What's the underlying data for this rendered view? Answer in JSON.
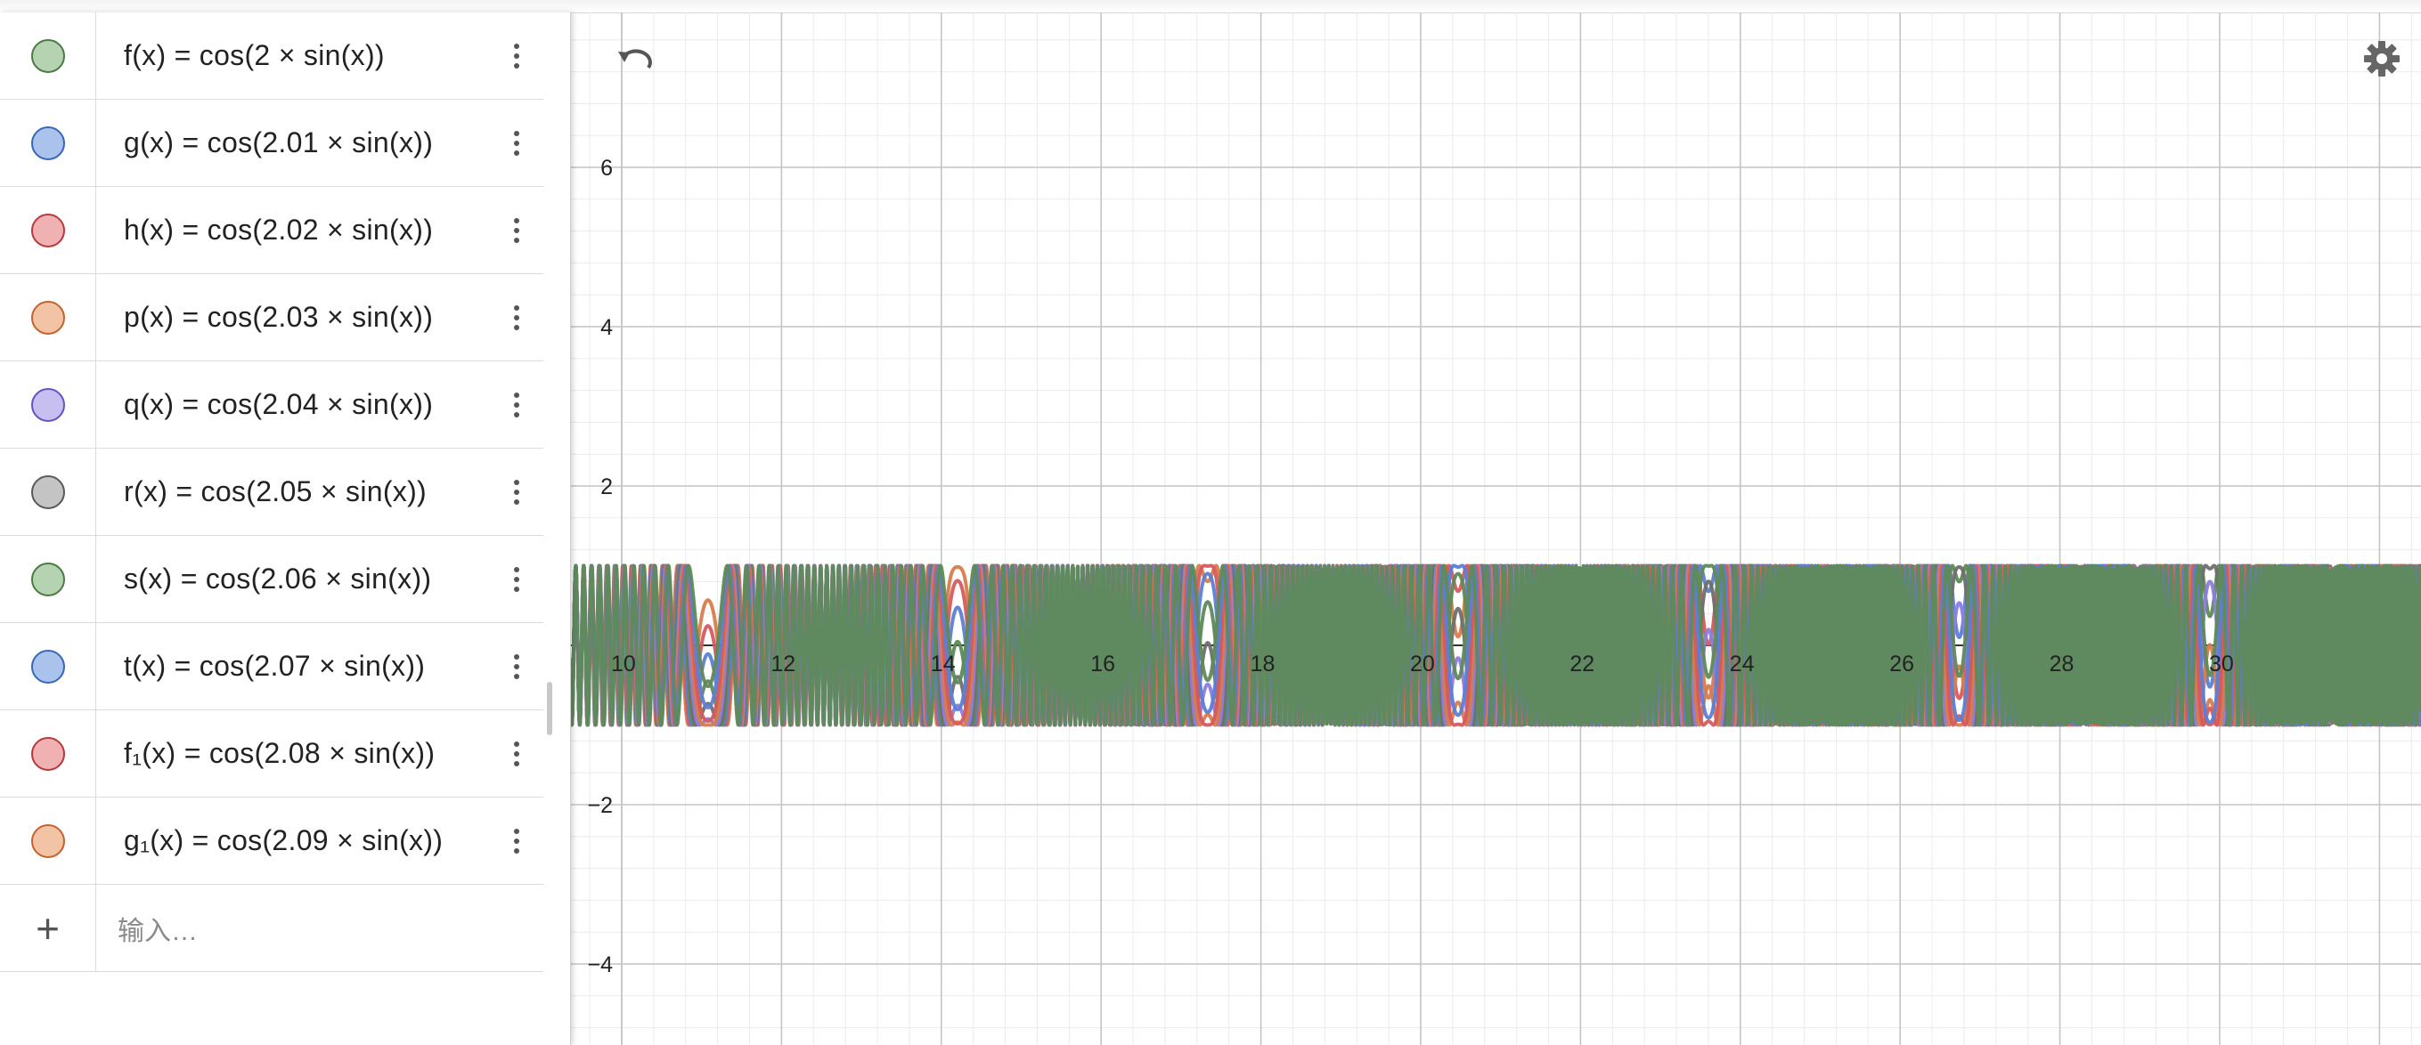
{
  "algebra": {
    "rows": [
      {
        "expr": "f(x)  =  cos(2 × sin(x))",
        "color": "#b5d3b1",
        "border": "#4b7a45"
      },
      {
        "expr": "g(x)  =  cos(2.01 × sin(x))",
        "color": "#a9c3ec",
        "border": "#3a66b8"
      },
      {
        "expr": "h(x)  =  cos(2.02 × sin(x))",
        "color": "#f0b1b3",
        "border": "#b8383c"
      },
      {
        "expr": "p(x)  =  cos(2.03 × sin(x))",
        "color": "#f2c3a5",
        "border": "#c4622e"
      },
      {
        "expr": "q(x)  =  cos(2.04 × sin(x))",
        "color": "#c7bff0",
        "border": "#6752c4"
      },
      {
        "expr": "r(x)  =  cos(2.05 × sin(x))",
        "color": "#c4c4c4",
        "border": "#5a5a5a"
      },
      {
        "expr": "s(x)  =  cos(2.06 × sin(x))",
        "color": "#b5d3b1",
        "border": "#4b7a45"
      },
      {
        "expr": "t(x)  =  cos(2.07 × sin(x))",
        "color": "#a9c3ec",
        "border": "#3a66b8"
      },
      {
        "expr": "f₁(x)  =  cos(2.08 × sin(x))",
        "color": "#f0b1b3",
        "border": "#b8383c"
      },
      {
        "expr": "g₁(x)  =  cos(2.09 × sin(x))",
        "color": "#f2c3a5",
        "border": "#c4622e"
      }
    ],
    "input_placeholder": "输入…",
    "add_icon": "plus-icon",
    "menu_icon": "more-vert-icon"
  },
  "graphics": {
    "undo_icon": "undo-icon",
    "settings_icon": "gear-icon",
    "x_tick_labels": [
      "10",
      "12",
      "14",
      "16",
      "18",
      "20",
      "22",
      "24",
      "26",
      "28",
      "30"
    ],
    "y_tick_labels": [
      "6",
      "4",
      "2",
      "−2",
      "−4"
    ]
  },
  "chart_data": {
    "type": "line",
    "xlim": [
      9.6,
      33.0
    ],
    "ylim": [
      -5.0,
      8.0
    ],
    "grid": true,
    "series": [
      {
        "name": "f",
        "k": 2.0,
        "color": "#5f8a58"
      },
      {
        "name": "g",
        "k": 2.01,
        "color": "#5b7fd6"
      },
      {
        "name": "h",
        "k": 2.02,
        "color": "#d65a5e"
      },
      {
        "name": "p",
        "k": 2.03,
        "color": "#d97c4c"
      },
      {
        "name": "q",
        "k": 2.04,
        "color": "#8e7de0"
      },
      {
        "name": "r",
        "k": 2.05,
        "color": "#6f6f6f"
      },
      {
        "name": "s",
        "k": 2.06,
        "color": "#5f8a58"
      },
      {
        "name": "t",
        "k": 2.07,
        "color": "#5b7fd6"
      },
      {
        "name": "f₁",
        "k": 2.08,
        "color": "#d65a5e"
      },
      {
        "name": "g₁",
        "k": 2.09,
        "color": "#d97c4c"
      }
    ]
  }
}
